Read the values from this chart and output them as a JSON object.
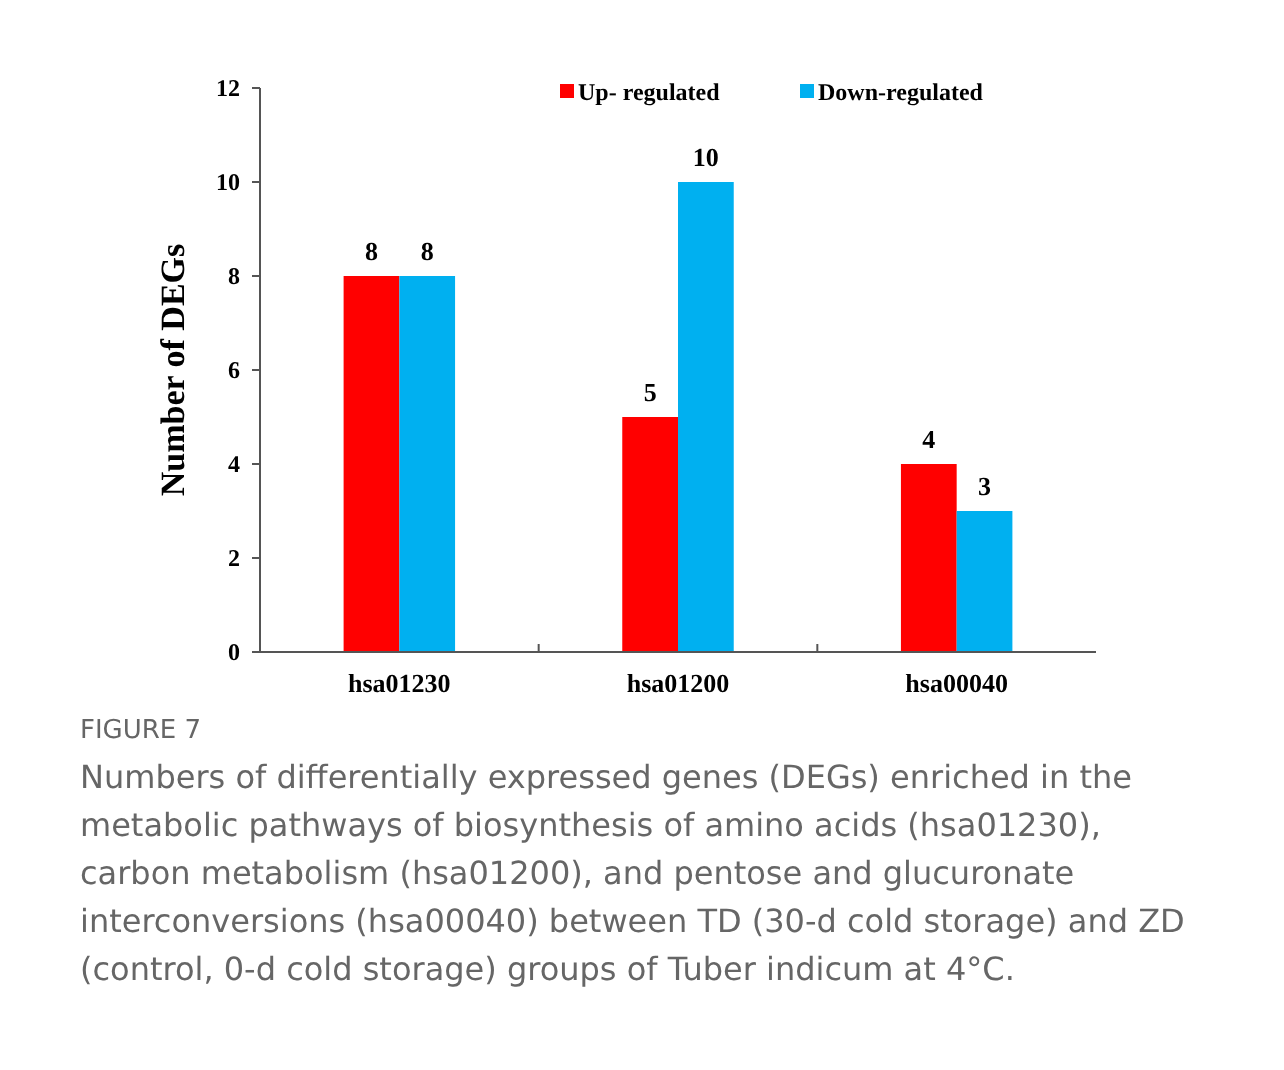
{
  "chart_data": {
    "type": "bar",
    "title": "FIGURE 7",
    "ylabel": "Number of DEGs",
    "categories": [
      "hsa01230",
      "hsa01200",
      "hsa00040"
    ],
    "series": [
      {
        "name": "Up- regulated",
        "color": "#ff0000",
        "values": [
          8,
          5,
          4
        ]
      },
      {
        "name": "Down-regulated",
        "color": "#00b0f0",
        "values": [
          8,
          10,
          3
        ]
      }
    ],
    "ylim": [
      0,
      12
    ],
    "yticks": [
      0,
      2,
      4,
      6,
      8,
      10,
      12
    ],
    "grid": false,
    "legend": "top right",
    "data_labels": true,
    "annotations": [
      "Numbers of differentially expressed genes (DEGs) enriched in the metabolic pathways of biosynthesis of amino acids (hsa01230), carbon metabolism (hsa01200), and pentose and glucuronate interconversions (hsa00040) between TD (30-d cold storage) and ZD (control, 0-d cold storage) groups of Tuber indicum at 4°C."
    ]
  }
}
